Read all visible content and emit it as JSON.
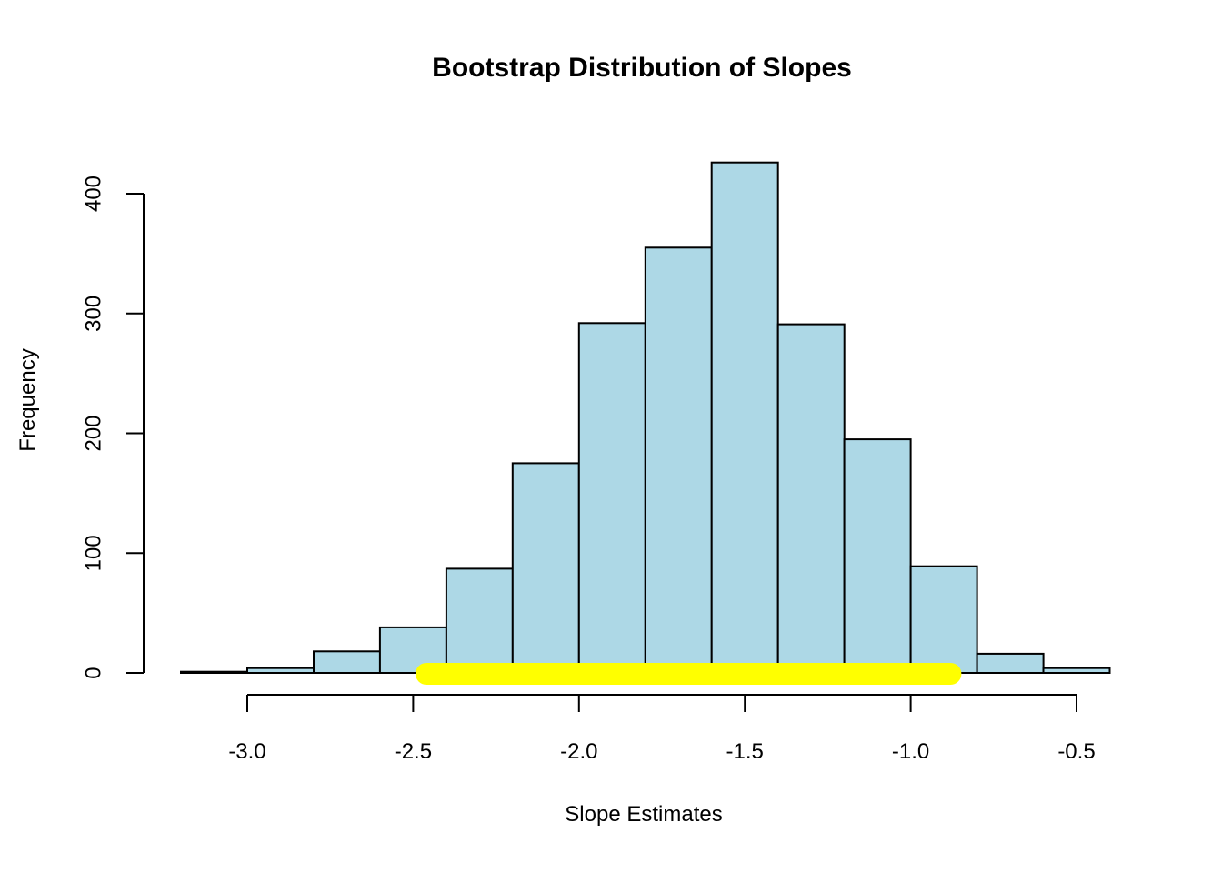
{
  "chart_data": {
    "type": "bar",
    "chart_kind": "histogram",
    "title": "Bootstrap Distribution of Slopes",
    "xlabel": "Slope Estimates",
    "ylabel": "Frequency",
    "bin_edges": [
      -3.2,
      -3.0,
      -2.8,
      -2.6,
      -2.4,
      -2.2,
      -2.0,
      -1.8,
      -1.6,
      -1.4,
      -1.2,
      -1.0,
      -0.8,
      -0.6,
      -0.4
    ],
    "frequencies": [
      1,
      4,
      18,
      38,
      87,
      175,
      292,
      355,
      426,
      291,
      195,
      89,
      16,
      4
    ],
    "x_ticks": [
      -3.0,
      -2.5,
      -2.0,
      -1.5,
      -1.0,
      -0.5
    ],
    "x_tick_labels": [
      "-3.0",
      "-2.5",
      "-2.0",
      "-1.5",
      "-1.0",
      "-0.5"
    ],
    "y_ticks": [
      0,
      100,
      200,
      300,
      400
    ],
    "y_tick_labels": [
      "0",
      "100",
      "200",
      "300",
      "400"
    ],
    "xlim": [
      -3.0,
      -0.5
    ],
    "ylim": [
      0,
      400
    ],
    "grid": "off",
    "legend": "none",
    "background": "#FFFFFF",
    "axis_color": "#000000",
    "bar_fill": "#ADD8E6",
    "bar_stroke": "#000000",
    "interval": {
      "name": "bootstrap-confidence-interval",
      "from": -2.46,
      "to": -0.88,
      "at_frequency": 0,
      "color": "#FFFF00",
      "thickness_px": 24
    }
  }
}
